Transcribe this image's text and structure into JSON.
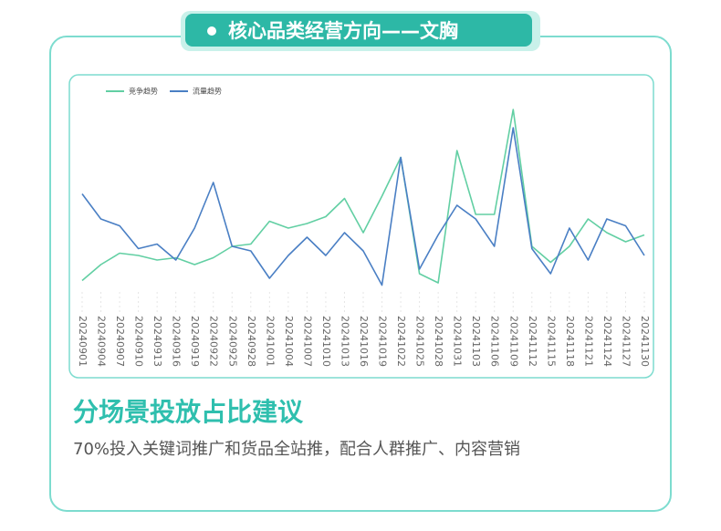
{
  "header": {
    "title": "核心品类经营方向——文胸"
  },
  "section": {
    "heading": "分场景投放占比建议",
    "text": "70%投入关键词推广和货品全站推，配合人群推广、内容营销"
  },
  "chart_data": {
    "type": "line",
    "x": [
      "20240901",
      "20240904",
      "20240907",
      "20240910",
      "20240913",
      "20240916",
      "20240919",
      "20240922",
      "20240925",
      "20240928",
      "20241001",
      "20241004",
      "20241007",
      "20241010",
      "20241013",
      "20241016",
      "20241019",
      "20241022",
      "20241025",
      "20241028",
      "20241031",
      "20241103",
      "20241106",
      "20241109",
      "20241112",
      "20241115",
      "20241118",
      "20241121",
      "20241124",
      "20241127",
      "20241130"
    ],
    "series": [
      {
        "name": "竞争趋势",
        "color": "#62cfa3",
        "values": [
          13,
          20,
          25,
          24,
          22,
          23,
          20,
          23,
          28,
          29,
          39,
          36,
          38,
          41,
          49,
          34,
          50,
          67,
          16,
          12,
          70,
          42,
          42,
          88,
          28,
          21,
          28,
          40,
          34,
          30,
          33
        ]
      },
      {
        "name": "流量趋势",
        "color": "#4a7fc4",
        "values": [
          51,
          40,
          37,
          27,
          29,
          22,
          36,
          56,
          28,
          26,
          14,
          24,
          32,
          24,
          34,
          26,
          11,
          67,
          18,
          33,
          46,
          40,
          28,
          80,
          27,
          16,
          36,
          22,
          40,
          37,
          24
        ]
      }
    ],
    "ylim": [
      0,
      100
    ],
    "legend": "top-left"
  }
}
